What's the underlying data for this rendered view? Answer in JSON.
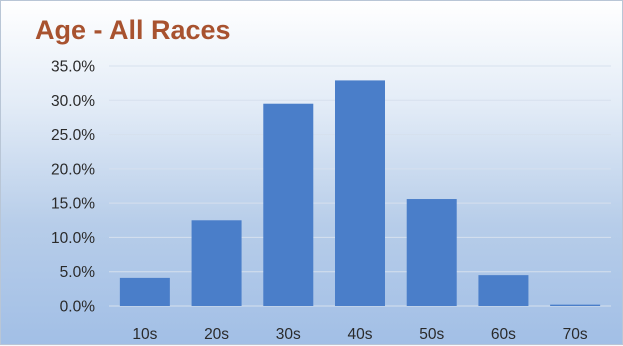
{
  "chart_data": {
    "type": "bar",
    "title": "Age - All Races",
    "xlabel": "",
    "ylabel": "",
    "categories": [
      "10s",
      "20s",
      "30s",
      "40s",
      "50s",
      "60s",
      "70s"
    ],
    "values": [
      4.1,
      12.5,
      29.5,
      32.9,
      15.6,
      4.5,
      0.2
    ],
    "y_ticks": [
      "0.0%",
      "5.0%",
      "10.0%",
      "15.0%",
      "20.0%",
      "25.0%",
      "30.0%",
      "35.0%"
    ],
    "ylim": [
      0,
      35
    ],
    "value_format": "percent",
    "grid": true,
    "bar_color": "#4a7ec9",
    "title_color": "#a8522f"
  }
}
